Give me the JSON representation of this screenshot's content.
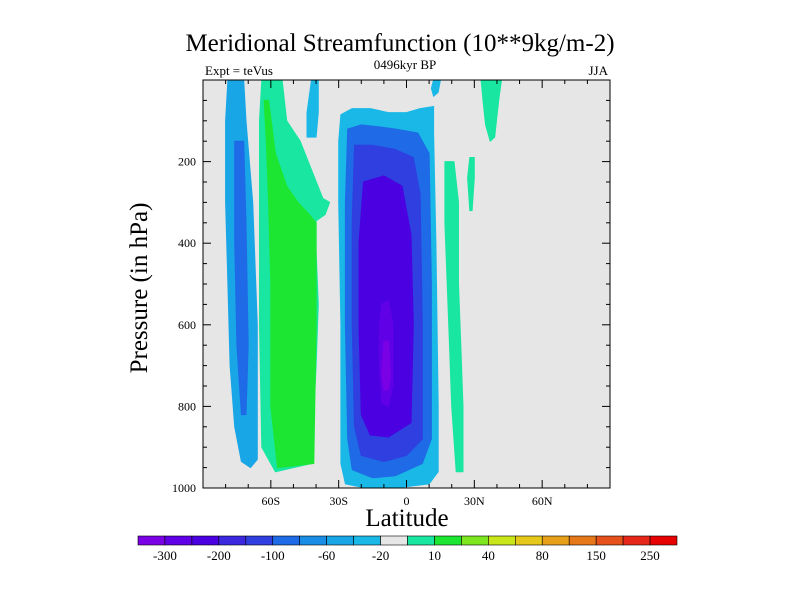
{
  "title": "Meridional Streamfunction (10**9kg/m-2)",
  "left_label": "Expt = teVus",
  "center_label": "0496kyr BP",
  "right_label": "JJA",
  "chart_data": {
    "type": "heatmap",
    "title": "Meridional Streamfunction (10**9kg/m-2)",
    "xlabel": "Latitude",
    "ylabel": "Pressure (in hPa)",
    "xlim": [
      -90,
      90
    ],
    "ylim": [
      1000,
      0
    ],
    "x_ticks": [
      -60,
      -30,
      0,
      30,
      60
    ],
    "x_tick_labels": [
      "60S",
      "30S",
      "0",
      "30N",
      "60N"
    ],
    "y_ticks": [
      200,
      400,
      600,
      800,
      1000
    ],
    "y_tick_labels": [
      "200",
      "400",
      "600",
      "800",
      "1000"
    ],
    "background_color": "#e6e6e6",
    "colorbar": {
      "colors": [
        "#7a00e6",
        "#6000e6",
        "#4a00e0",
        "#3b28df",
        "#2f3fe0",
        "#1f6ae6",
        "#1a8ee6",
        "#18a6e6",
        "#1ab8e6",
        "#e6e6e6",
        "#19e6a0",
        "#1de632",
        "#7de61e",
        "#c8e61a",
        "#e6c81a",
        "#e6a01a",
        "#e6781a",
        "#e6501a",
        "#e6281a",
        "#e60000"
      ],
      "labels": [
        "-300",
        "-200",
        "-100",
        "-60",
        "-20",
        "10",
        "40",
        "80",
        "150",
        "250"
      ]
    },
    "regions": [
      {
        "level": "-20",
        "color": "#18a6e6",
        "points": [
          [
            -79,
            0
          ],
          [
            -72,
            0
          ],
          [
            -71,
            100
          ],
          [
            -68,
            300
          ],
          [
            -66,
            600
          ],
          [
            -66,
            800
          ],
          [
            -66,
            930
          ],
          [
            -69,
            950
          ],
          [
            -73,
            935
          ],
          [
            -76,
            850
          ],
          [
            -78,
            700
          ],
          [
            -79,
            500
          ],
          [
            -80,
            300
          ],
          [
            -80,
            100
          ]
        ]
      },
      {
        "level": "-60",
        "color": "#1f6ae6",
        "points": [
          [
            -76,
            150
          ],
          [
            -72,
            150
          ],
          [
            -71,
            350
          ],
          [
            -70,
            650
          ],
          [
            -71,
            820
          ],
          [
            -73,
            820
          ],
          [
            -75,
            650
          ],
          [
            -76,
            400
          ]
        ]
      },
      {
        "level": "-20",
        "color": "#1ab8e6",
        "points": [
          [
            -42,
            0
          ],
          [
            -39,
            0
          ],
          [
            -39,
            80
          ],
          [
            -40,
            140
          ],
          [
            -44,
            140
          ],
          [
            -44,
            80
          ]
        ]
      },
      {
        "level": "10",
        "color": "#19e6a0",
        "points": [
          [
            -64,
            0
          ],
          [
            -55,
            0
          ],
          [
            -53,
            100
          ],
          [
            -47,
            150
          ],
          [
            -42,
            220
          ],
          [
            -37,
            290
          ],
          [
            -34,
            300
          ],
          [
            -36,
            330
          ],
          [
            -40,
            345
          ],
          [
            -40,
            420
          ],
          [
            -39,
            550
          ],
          [
            -40,
            700
          ],
          [
            -42,
            940
          ],
          [
            -58,
            960
          ],
          [
            -64,
            900
          ],
          [
            -65,
            600
          ],
          [
            -65,
            300
          ],
          [
            -65,
            100
          ]
        ]
      },
      {
        "level": "40",
        "color": "#1de632",
        "points": [
          [
            -63,
            50
          ],
          [
            -61,
            50
          ],
          [
            -58,
            180
          ],
          [
            -53,
            260
          ],
          [
            -48,
            300
          ],
          [
            -43,
            330
          ],
          [
            -40,
            350
          ],
          [
            -40,
            600
          ],
          [
            -41,
            940
          ],
          [
            -57,
            950
          ],
          [
            -60,
            800
          ],
          [
            -60,
            500
          ],
          [
            -61,
            300
          ],
          [
            -62,
            150
          ]
        ]
      },
      {
        "level": "-20",
        "color": "#1ab8e6",
        "points": [
          [
            -29,
            85
          ],
          [
            -24,
            70
          ],
          [
            -16,
            70
          ],
          [
            -8,
            80
          ],
          [
            0,
            80
          ],
          [
            6,
            70
          ],
          [
            12,
            65
          ],
          [
            12,
            130
          ],
          [
            13,
            400
          ],
          [
            14,
            800
          ],
          [
            14,
            960
          ],
          [
            10,
            990
          ],
          [
            -5,
            1000
          ],
          [
            -18,
            1000
          ],
          [
            -27,
            990
          ],
          [
            -29,
            940
          ],
          [
            -29,
            600
          ],
          [
            -30,
            300
          ],
          [
            -30,
            150
          ]
        ]
      },
      {
        "level": "-60",
        "color": "#1f6ae6",
        "points": [
          [
            -26,
            120
          ],
          [
            -20,
            110
          ],
          [
            -12,
            115
          ],
          [
            -5,
            120
          ],
          [
            5,
            130
          ],
          [
            10,
            180
          ],
          [
            11,
            500
          ],
          [
            11,
            880
          ],
          [
            7,
            940
          ],
          [
            -5,
            970
          ],
          [
            -15,
            975
          ],
          [
            -24,
            955
          ],
          [
            -26,
            880
          ],
          [
            -27,
            600
          ],
          [
            -27,
            300
          ]
        ]
      },
      {
        "level": "-100",
        "color": "#2f3fe0",
        "points": [
          [
            -23,
            160
          ],
          [
            -15,
            160
          ],
          [
            -5,
            170
          ],
          [
            3,
            190
          ],
          [
            6,
            280
          ],
          [
            7,
            600
          ],
          [
            7,
            880
          ],
          [
            0,
            920
          ],
          [
            -10,
            935
          ],
          [
            -20,
            920
          ],
          [
            -23,
            850
          ],
          [
            -24,
            600
          ],
          [
            -24,
            350
          ]
        ]
      },
      {
        "level": "-200",
        "color": "#4a00e0",
        "points": [
          [
            -19,
            250
          ],
          [
            -10,
            235
          ],
          [
            -2,
            260
          ],
          [
            2,
            380
          ],
          [
            3,
            600
          ],
          [
            2,
            840
          ],
          [
            -8,
            875
          ],
          [
            -16,
            870
          ],
          [
            -20,
            820
          ],
          [
            -21,
            600
          ],
          [
            -21,
            400
          ]
        ]
      },
      {
        "level": "-300",
        "color": "#6000e6",
        "points": [
          [
            -11,
            550
          ],
          [
            -8,
            540
          ],
          [
            -6,
            600
          ],
          [
            -6,
            750
          ],
          [
            -8,
            800
          ],
          [
            -11,
            790
          ],
          [
            -12,
            700
          ],
          [
            -12,
            600
          ]
        ]
      },
      {
        "level": "-300",
        "color": "#7a00e6",
        "points": [
          [
            -10,
            640
          ],
          [
            -8,
            640
          ],
          [
            -7,
            720
          ],
          [
            -8,
            760
          ],
          [
            -10,
            760
          ],
          [
            -11,
            720
          ]
        ]
      },
      {
        "level": "10",
        "color": "#19e6a0",
        "points": [
          [
            17,
            200
          ],
          [
            21,
            200
          ],
          [
            23,
            300
          ],
          [
            23,
            500
          ],
          [
            24,
            650
          ],
          [
            25,
            800
          ],
          [
            25,
            960
          ],
          [
            22,
            960
          ],
          [
            20,
            800
          ],
          [
            19,
            650
          ],
          [
            18,
            500
          ],
          [
            17,
            350
          ]
        ]
      },
      {
        "level": "10",
        "color": "#19e6a0",
        "points": [
          [
            28,
            190
          ],
          [
            30,
            190
          ],
          [
            30,
            240
          ],
          [
            29,
            320
          ],
          [
            28,
            320
          ],
          [
            27,
            240
          ]
        ]
      },
      {
        "level": "10",
        "color": "#19e6a0",
        "points": [
          [
            33,
            0
          ],
          [
            42,
            0
          ],
          [
            41,
            40
          ],
          [
            40,
            90
          ],
          [
            39,
            140
          ],
          [
            37,
            150
          ],
          [
            35,
            110
          ],
          [
            34,
            60
          ]
        ]
      },
      {
        "level": "-20",
        "color": "#1ab8e6",
        "points": [
          [
            12,
            0
          ],
          [
            15,
            0
          ],
          [
            14,
            30
          ],
          [
            12,
            40
          ],
          [
            11,
            20
          ]
        ]
      }
    ]
  }
}
